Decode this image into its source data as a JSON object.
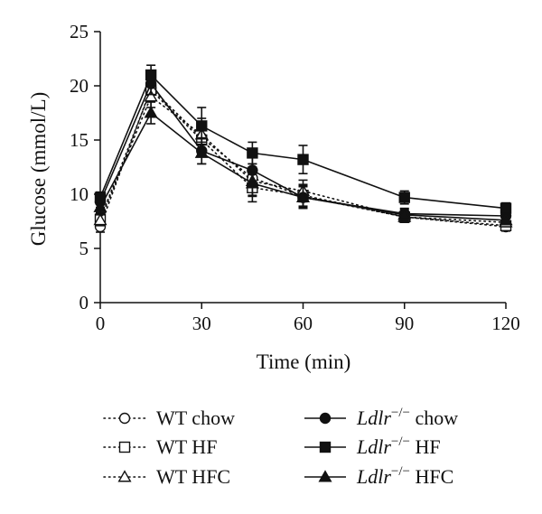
{
  "chart_data": {
    "type": "line",
    "title": "",
    "xlabel": "Time (min)",
    "ylabel": "Glucose (mmol/L)",
    "x": [
      0,
      15,
      30,
      45,
      60,
      90,
      120
    ],
    "xticks": [
      "0",
      "30",
      "60",
      "90",
      "120"
    ],
    "yticks": [
      "0",
      "5",
      "10",
      "15",
      "20",
      "25"
    ],
    "xlim": [
      0,
      120
    ],
    "ylim": [
      0,
      25
    ],
    "grid": false,
    "legend_position": "bottom",
    "series": [
      {
        "name": "WT chow",
        "legend_main": "WT chow",
        "legend_italic": "",
        "legend_sup": "",
        "line_style": "dotted",
        "marker": "circle-open",
        "values": [
          7.0,
          19.8,
          15.2,
          11.5,
          9.8,
          7.9,
          7.0
        ],
        "errors": [
          0.5,
          1.0,
          1.5,
          1.3,
          1.0,
          0.5,
          0.4
        ]
      },
      {
        "name": "WT HF",
        "legend_main": "WT HF",
        "legend_italic": "",
        "legend_sup": "",
        "line_style": "dotted",
        "marker": "square-open",
        "values": [
          7.7,
          19.6,
          15.0,
          10.6,
          9.9,
          7.9,
          7.1
        ],
        "errors": [
          0.5,
          1.0,
          1.5,
          1.3,
          1.0,
          0.5,
          0.4
        ]
      },
      {
        "name": "WT HFC",
        "legend_main": "WT HFC",
        "legend_italic": "",
        "legend_sup": "",
        "line_style": "dotted",
        "marker": "triangle-open",
        "values": [
          7.6,
          19.0,
          15.5,
          11.2,
          10.3,
          7.9,
          7.4
        ],
        "errors": [
          0.5,
          1.0,
          1.5,
          1.3,
          1.0,
          0.5,
          0.4
        ]
      },
      {
        "name": "Ldlr−/− chow",
        "legend_main": " chow",
        "legend_italic": "Ldlr",
        "legend_sup": "−/−",
        "line_style": "solid",
        "marker": "circle-filled",
        "values": [
          9.3,
          20.2,
          14.0,
          12.2,
          9.7,
          8.2,
          8.0
        ],
        "errors": [
          0.5,
          1.0,
          1.2,
          1.3,
          1.0,
          0.5,
          0.5
        ]
      },
      {
        "name": "Ldlr−/− HF",
        "legend_main": " HF",
        "legend_italic": "Ldlr",
        "legend_sup": "−/−",
        "line_style": "solid",
        "marker": "square-filled",
        "values": [
          9.7,
          21.0,
          16.3,
          13.8,
          13.2,
          9.7,
          8.7
        ],
        "errors": [
          0.5,
          0.9,
          1.7,
          1.0,
          1.3,
          0.6,
          0.5
        ]
      },
      {
        "name": "Ldlr−/− HFC",
        "legend_main": " HFC",
        "legend_italic": "Ldlr",
        "legend_sup": "−/−",
        "line_style": "solid",
        "marker": "triangle-filled",
        "values": [
          8.8,
          17.5,
          13.8,
          11.0,
          9.7,
          8.1,
          7.6
        ],
        "errors": [
          0.5,
          1.0,
          1.0,
          1.2,
          1.0,
          0.5,
          0.4
        ]
      }
    ]
  }
}
